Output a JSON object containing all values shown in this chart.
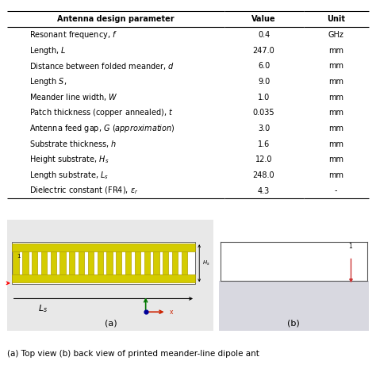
{
  "title": "Antenna design parameter",
  "col_value": "Value",
  "col_unit": "Unit",
  "rows": [
    [
      "Resonant frequency, $f$",
      "0.4",
      "GHz"
    ],
    [
      "Length, $L$",
      "247.0",
      "mm"
    ],
    [
      "Distance between folded meander, $d$",
      "6.0",
      "mm"
    ],
    [
      "Length $S$,",
      "9.0",
      "mm"
    ],
    [
      "Meander line width, $W$",
      "1.0",
      "mm"
    ],
    [
      "Patch thickness (copper annealed), $t$",
      "0.035",
      "mm"
    ],
    [
      "Antenna feed gap, $G$ $(approximation)$",
      "3.0",
      "mm"
    ],
    [
      "Substrate thickness, $h$",
      "1.6",
      "mm"
    ],
    [
      "Height substrate, $H_s$",
      "12.0",
      "mm"
    ],
    [
      "Length substrate, $L_s$",
      "248.0",
      "mm"
    ],
    [
      "Dielectric constant (FR4), $\\varepsilon_r$",
      "4.3",
      "-"
    ]
  ],
  "bg_color": "#e8e8e8",
  "meander_fill": "#d4cc00",
  "meander_edge": "#b0a000",
  "label_a": "(a)",
  "label_b": "(b)",
  "caption": "(a) Top view (b) back view of printed meander-line dipole ant",
  "axis_color_x": "#cc2200",
  "axis_color_y": "#007700",
  "axis_color_z": "#000099"
}
